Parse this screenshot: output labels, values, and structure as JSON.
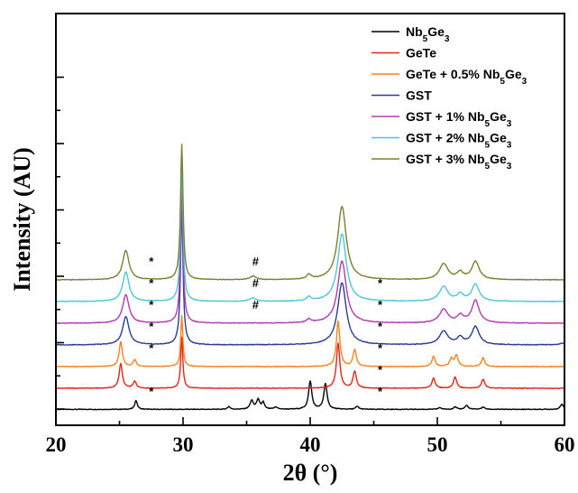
{
  "chart_data": {
    "type": "line",
    "xlabel": "2θ (°)",
    "ylabel": "Intensity (AU)",
    "xlim": [
      20,
      60
    ],
    "xticks": [
      "20",
      "30",
      "40",
      "50",
      "60"
    ],
    "y_ticks_labeled": false,
    "y_offsets_au": [
      0,
      1,
      2,
      3,
      4,
      5,
      6
    ],
    "legend_position": "top-right",
    "series": [
      {
        "name": "Nb5Ge3",
        "parts": [
          [
            "Nb",
            ""
          ],
          [
            "5",
            "sub"
          ],
          [
            "Ge",
            ""
          ],
          [
            "3",
            "sub"
          ]
        ],
        "color": "#000000",
        "offset": 0,
        "baseline": 0.05,
        "peaks": [
          [
            26.3,
            0.8,
            0.12
          ],
          [
            33.6,
            0.25,
            0.12
          ],
          [
            35.4,
            0.75,
            0.15
          ],
          [
            35.9,
            0.85,
            0.15
          ],
          [
            36.3,
            0.6,
            0.12
          ],
          [
            37.3,
            0.2,
            0.15
          ],
          [
            40.0,
            2.5,
            0.15
          ],
          [
            41.2,
            2.3,
            0.15
          ],
          [
            43.7,
            0.25,
            0.15
          ],
          [
            50.2,
            0.15,
            0.15
          ],
          [
            51.4,
            0.2,
            0.15
          ],
          [
            52.3,
            0.35,
            0.15
          ],
          [
            53.6,
            0.2,
            0.15
          ],
          [
            59.8,
            0.45,
            0.15
          ]
        ]
      },
      {
        "name": "GeTe",
        "parts": [
          [
            "GeTe",
            ""
          ]
        ],
        "color": "#e8231c",
        "offset": 1,
        "baseline": 0.0,
        "peaks": [
          [
            25.1,
            2.2,
            0.15
          ],
          [
            26.2,
            0.6,
            0.15
          ],
          [
            29.9,
            4.5,
            0.1
          ],
          [
            42.2,
            4.0,
            0.16
          ],
          [
            43.5,
            1.5,
            0.15
          ],
          [
            49.7,
            0.9,
            0.15
          ],
          [
            51.4,
            1.0,
            0.15
          ],
          [
            53.6,
            0.8,
            0.15
          ]
        ]
      },
      {
        "name": "GeTe + 0.5% Nb5Ge3",
        "parts": [
          [
            "GeTe + 0.5% Nb",
            ""
          ],
          [
            "5",
            "sub"
          ],
          [
            "Ge",
            ""
          ],
          [
            "3",
            "sub"
          ]
        ],
        "color": "#f7821e",
        "offset": 2,
        "baseline": 0.0,
        "peaks": [
          [
            25.1,
            2.2,
            0.15
          ],
          [
            26.2,
            0.6,
            0.15
          ],
          [
            29.9,
            4.5,
            0.1
          ],
          [
            42.2,
            4.0,
            0.16
          ],
          [
            43.5,
            1.5,
            0.15
          ],
          [
            49.7,
            0.9,
            0.15
          ],
          [
            51.1,
            0.7,
            0.15
          ],
          [
            51.5,
            1.0,
            0.15
          ],
          [
            53.6,
            0.8,
            0.15
          ]
        ]
      },
      {
        "name": "GST",
        "parts": [
          [
            "GST",
            ""
          ]
        ],
        "color": "#2b3d97",
        "offset": 3,
        "baseline": 0.0,
        "peaks": [
          [
            25.5,
            2.5,
            0.3
          ],
          [
            29.9,
            12.0,
            0.12
          ],
          [
            42.5,
            5.5,
            0.4
          ],
          [
            50.5,
            1.2,
            0.4
          ],
          [
            51.8,
            0.6,
            0.3
          ],
          [
            53.0,
            1.6,
            0.35
          ],
          [
            59.9,
            0.15,
            0.3
          ]
        ]
      },
      {
        "name": "GST + 1% Nb5Ge3",
        "parts": [
          [
            "GST + 1% Nb",
            ""
          ],
          [
            "5",
            "sub"
          ],
          [
            "Ge",
            ""
          ],
          [
            "3",
            "sub"
          ]
        ],
        "color": "#b13bb3",
        "offset": 4,
        "baseline": 0.0,
        "peaks": [
          [
            25.5,
            2.5,
            0.3
          ],
          [
            29.9,
            12.0,
            0.12
          ],
          [
            39.9,
            0.3,
            0.2
          ],
          [
            42.5,
            5.5,
            0.4
          ],
          [
            50.5,
            1.2,
            0.4
          ],
          [
            51.8,
            0.6,
            0.3
          ],
          [
            53.0,
            2.0,
            0.35
          ]
        ]
      },
      {
        "name": "GST + 2% Nb5Ge3",
        "parts": [
          [
            "GST + 2% Nb",
            ""
          ],
          [
            "5",
            "sub"
          ],
          [
            "Ge",
            ""
          ],
          [
            "3",
            "sub"
          ]
        ],
        "color": "#4fc6d6",
        "offset": 5,
        "baseline": 0.0,
        "peaks": [
          [
            25.5,
            2.6,
            0.3
          ],
          [
            29.9,
            12.0,
            0.12
          ],
          [
            35.5,
            0.3,
            0.3
          ],
          [
            39.9,
            0.35,
            0.2
          ],
          [
            42.5,
            6.0,
            0.4
          ],
          [
            50.5,
            1.3,
            0.4
          ],
          [
            51.8,
            0.6,
            0.3
          ],
          [
            53.0,
            1.5,
            0.35
          ]
        ]
      },
      {
        "name": "GST + 3% Nb5Ge3",
        "parts": [
          [
            "GST + 3% Nb",
            ""
          ],
          [
            "5",
            "sub"
          ],
          [
            "Ge",
            ""
          ],
          [
            "3",
            "sub"
          ]
        ],
        "color": "#7a8033",
        "offset": 6,
        "baseline": 0.0,
        "peaks": [
          [
            25.5,
            2.6,
            0.3
          ],
          [
            29.9,
            12.0,
            0.12
          ],
          [
            35.5,
            0.3,
            0.3
          ],
          [
            39.9,
            0.4,
            0.2
          ],
          [
            42.5,
            6.5,
            0.4
          ],
          [
            50.5,
            1.4,
            0.4
          ],
          [
            51.8,
            0.6,
            0.3
          ],
          [
            53.0,
            1.6,
            0.35
          ]
        ]
      }
    ],
    "annotations": [
      {
        "symbol": "*",
        "x": 27.5,
        "offset": 1
      },
      {
        "symbol": "*",
        "x": 27.5,
        "offset": 3
      },
      {
        "symbol": "*",
        "x": 27.5,
        "offset": 4
      },
      {
        "symbol": "*",
        "x": 27.5,
        "offset": 5
      },
      {
        "symbol": "*",
        "x": 27.5,
        "offset": 6
      },
      {
        "symbol": "*",
        "x": 27.5,
        "offset": 7
      },
      {
        "symbol": "*",
        "x": 45.5,
        "offset": 1
      },
      {
        "symbol": "*",
        "x": 45.5,
        "offset": 2
      },
      {
        "symbol": "*",
        "x": 45.5,
        "offset": 3
      },
      {
        "symbol": "*",
        "x": 45.5,
        "offset": 4
      },
      {
        "symbol": "*",
        "x": 45.5,
        "offset": 5
      },
      {
        "symbol": "*",
        "x": 45.5,
        "offset": 6
      },
      {
        "symbol": "#",
        "x": 35.7,
        "offset": 5
      },
      {
        "symbol": "#",
        "x": 35.7,
        "offset": 6
      },
      {
        "symbol": "#",
        "x": 35.7,
        "offset": 7
      }
    ]
  }
}
